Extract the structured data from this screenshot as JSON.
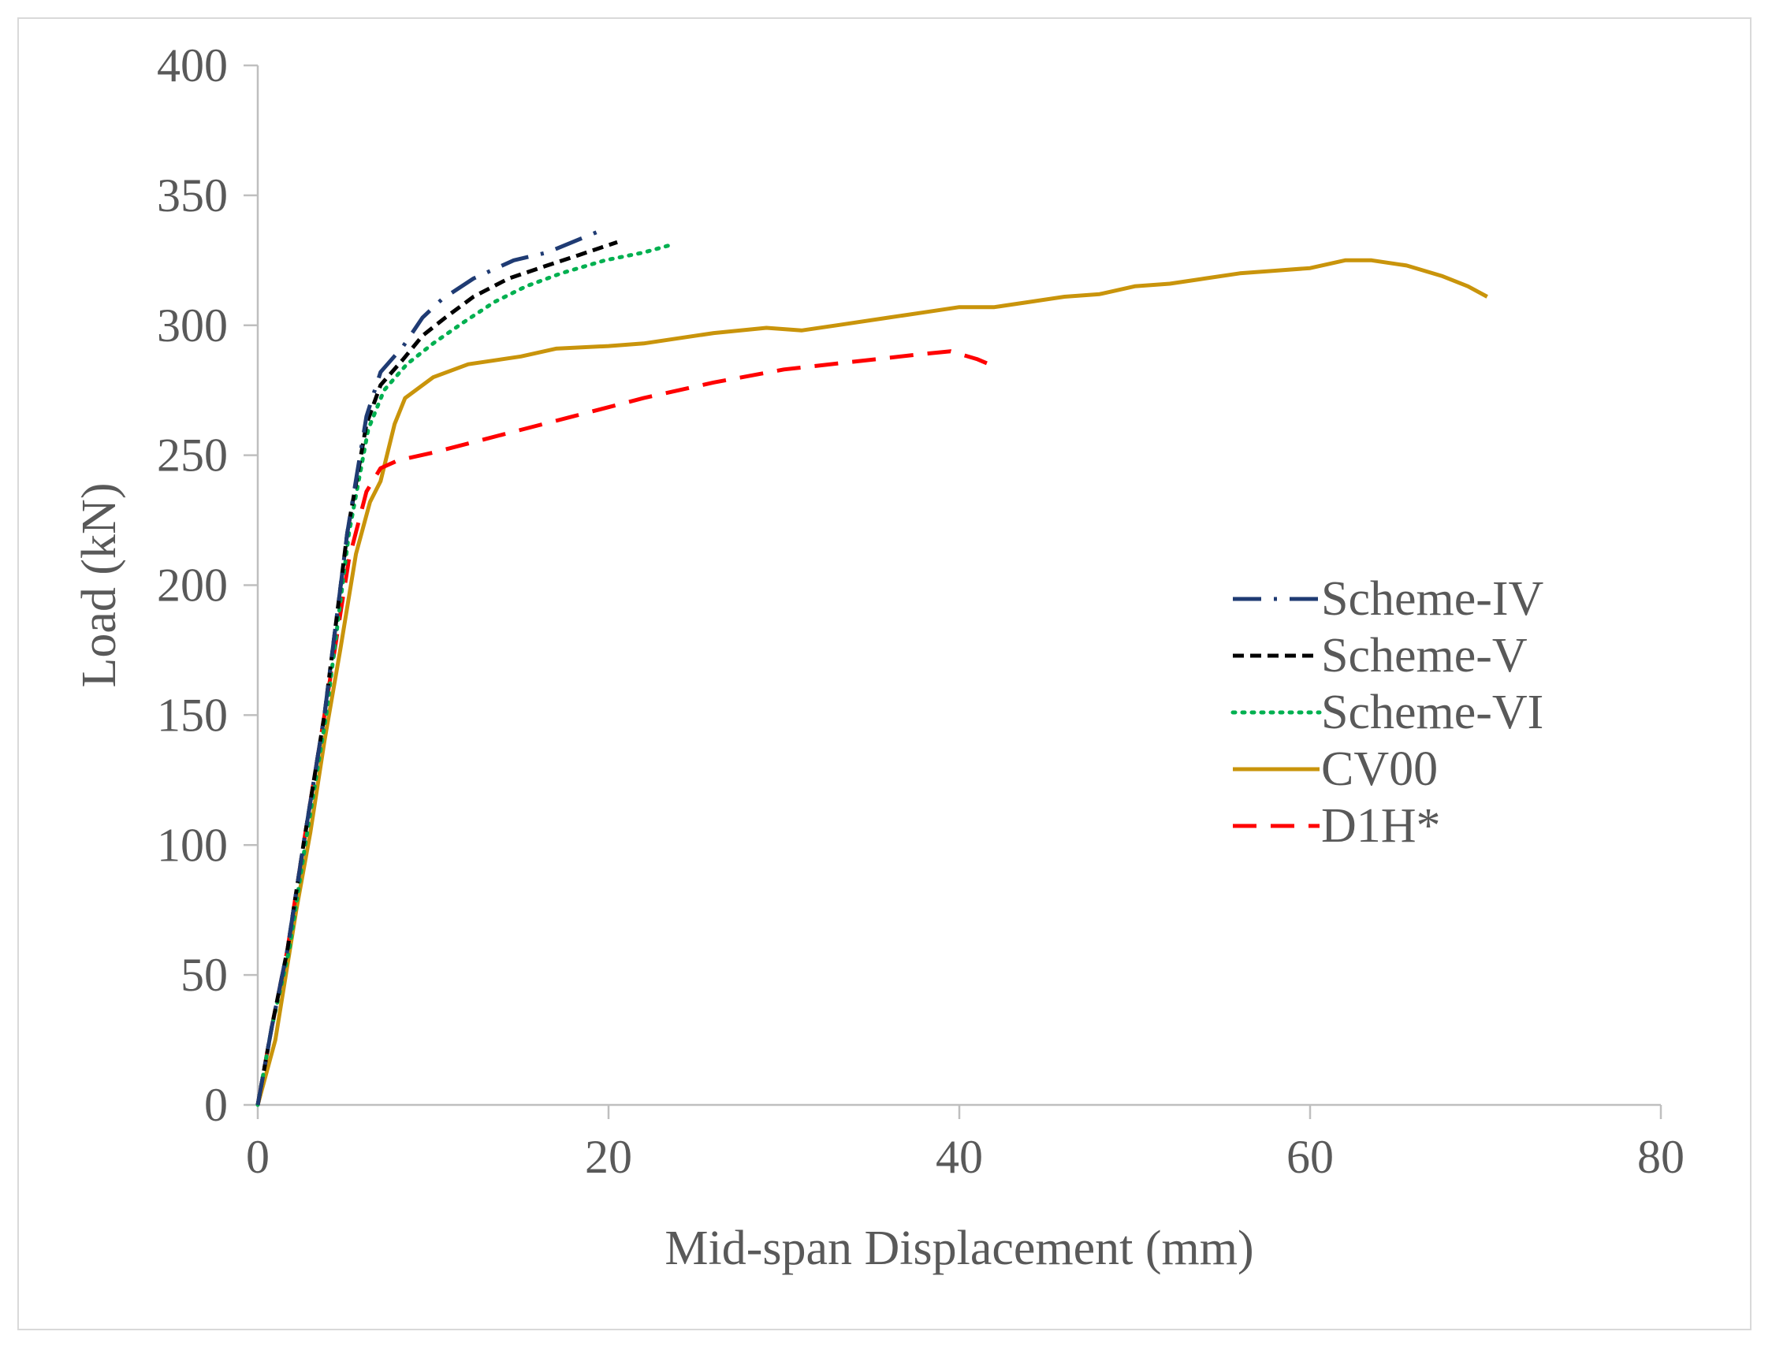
{
  "chart_data": {
    "type": "line",
    "title": "",
    "xlabel": "Mid-span Displacement (mm)",
    "ylabel": "Load (kN)",
    "xlim": [
      0,
      80
    ],
    "ylim": [
      0,
      400
    ],
    "xticks": [
      0,
      20,
      40,
      60,
      80
    ],
    "yticks": [
      0,
      50,
      100,
      150,
      200,
      250,
      300,
      350,
      400
    ],
    "grid": false,
    "legend_position": "right",
    "series": [
      {
        "name": "Scheme-IV",
        "color": "#1f3b73",
        "style": "dash-dot",
        "points": [
          [
            0,
            0
          ],
          [
            0.8,
            30
          ],
          [
            1.7,
            60
          ],
          [
            2.6,
            100
          ],
          [
            3.8,
            150
          ],
          [
            5.1,
            220
          ],
          [
            6.2,
            265
          ],
          [
            7.0,
            282
          ],
          [
            8.3,
            292
          ],
          [
            9.4,
            303
          ],
          [
            10.5,
            310
          ],
          [
            12.3,
            318
          ],
          [
            14.6,
            325
          ],
          [
            16.5,
            328
          ],
          [
            18.3,
            333
          ],
          [
            19.4,
            336
          ]
        ]
      },
      {
        "name": "Scheme-V",
        "color": "#000000",
        "style": "dashed",
        "points": [
          [
            0,
            0
          ],
          [
            0.8,
            30
          ],
          [
            1.7,
            60
          ],
          [
            2.6,
            100
          ],
          [
            3.8,
            150
          ],
          [
            5.1,
            220
          ],
          [
            6.2,
            262
          ],
          [
            7.0,
            277
          ],
          [
            8.3,
            287
          ],
          [
            9.4,
            296
          ],
          [
            10.7,
            303
          ],
          [
            12.3,
            311
          ],
          [
            14.3,
            318
          ],
          [
            16.5,
            323
          ],
          [
            18.3,
            327
          ],
          [
            20.5,
            332
          ]
        ]
      },
      {
        "name": "Scheme-VI",
        "color": "#00b050",
        "style": "dotted",
        "points": [
          [
            0,
            0
          ],
          [
            0.8,
            30
          ],
          [
            1.8,
            60
          ],
          [
            2.7,
            100
          ],
          [
            3.9,
            150
          ],
          [
            5.2,
            220
          ],
          [
            6.3,
            260
          ],
          [
            7.2,
            275
          ],
          [
            8.5,
            285
          ],
          [
            10.0,
            293
          ],
          [
            11.7,
            301
          ],
          [
            13.5,
            309
          ],
          [
            15.3,
            315
          ],
          [
            17.3,
            320
          ],
          [
            19.8,
            325
          ],
          [
            22.0,
            328
          ],
          [
            23.6,
            331
          ]
        ]
      },
      {
        "name": "CV00",
        "color": "#c9940b",
        "style": "solid",
        "points": [
          [
            0,
            0
          ],
          [
            1.0,
            25
          ],
          [
            2.2,
            75
          ],
          [
            3.0,
            105
          ],
          [
            3.8,
            140
          ],
          [
            4.7,
            175
          ],
          [
            5.6,
            212
          ],
          [
            6.4,
            232
          ],
          [
            7.0,
            240
          ],
          [
            7.8,
            262
          ],
          [
            8.4,
            272
          ],
          [
            10.0,
            280
          ],
          [
            12.0,
            285
          ],
          [
            15.0,
            288
          ],
          [
            17.0,
            291
          ],
          [
            20.0,
            292
          ],
          [
            22.0,
            293
          ],
          [
            24.0,
            295
          ],
          [
            26.0,
            297
          ],
          [
            29.0,
            299
          ],
          [
            31.0,
            298
          ],
          [
            33.0,
            300
          ],
          [
            36.0,
            303
          ],
          [
            38.0,
            305
          ],
          [
            40.0,
            307
          ],
          [
            42.0,
            307
          ],
          [
            44.0,
            309
          ],
          [
            46.0,
            311
          ],
          [
            48.0,
            312
          ],
          [
            50.0,
            315
          ],
          [
            52.0,
            316
          ],
          [
            54.0,
            318
          ],
          [
            56.0,
            320
          ],
          [
            58.0,
            321
          ],
          [
            60.0,
            322
          ],
          [
            62.0,
            325
          ],
          [
            63.5,
            325
          ],
          [
            65.5,
            323
          ],
          [
            67.5,
            319
          ],
          [
            69.0,
            315
          ],
          [
            70.1,
            311
          ]
        ]
      },
      {
        "name": "D1H*",
        "color": "#ff0000",
        "style": "long-dash",
        "points": [
          [
            0,
            0
          ],
          [
            0.8,
            30
          ],
          [
            1.7,
            60
          ],
          [
            2.6,
            100
          ],
          [
            3.8,
            150
          ],
          [
            5.2,
            210
          ],
          [
            6.2,
            236
          ],
          [
            7.0,
            245
          ],
          [
            8.0,
            248
          ],
          [
            10.0,
            251
          ],
          [
            14.0,
            258
          ],
          [
            18.0,
            265
          ],
          [
            22.0,
            272
          ],
          [
            26.0,
            278
          ],
          [
            30.0,
            283
          ],
          [
            34.0,
            286
          ],
          [
            38.0,
            289
          ],
          [
            39.5,
            290
          ],
          [
            41.0,
            287
          ],
          [
            41.7,
            285
          ]
        ]
      }
    ]
  }
}
